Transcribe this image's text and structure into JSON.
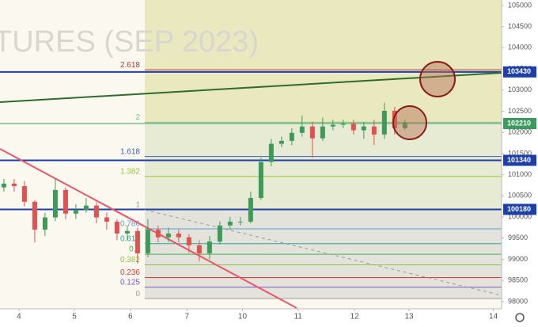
{
  "chart_data": {
    "type": "candlestick",
    "watermark": "TURES (SEP 2023)",
    "xlim": [
      -0.38,
      48.4
    ],
    "ylim": [
      97830,
      105130
    ],
    "xticks": [
      {
        "value": 1.46,
        "label": "4"
      },
      {
        "value": 6.85,
        "label": "5"
      },
      {
        "value": 12.3,
        "label": "6"
      },
      {
        "value": 17.8,
        "label": "7"
      },
      {
        "value": 23.2,
        "label": "10"
      },
      {
        "value": 28.6,
        "label": "11"
      },
      {
        "value": 34.1,
        "label": "12"
      },
      {
        "value": 39.4,
        "label": "13"
      },
      {
        "value": 47.6,
        "label": "14"
      }
    ],
    "yticks": [
      98000,
      98500,
      99000,
      99500,
      100000,
      100500,
      101000,
      101500,
      102000,
      102500,
      103000,
      103500,
      104000,
      104500,
      105000
    ],
    "up_color": "#3f9a5a",
    "down_color": "#e0524f",
    "open": [
      100700,
      100790,
      100730,
      100360,
      99700,
      99990,
      100640,
      100080,
      100170,
      100270,
      99990,
      99890,
      99610,
      99670,
      99140,
      99700,
      99520,
      99610,
      99520,
      99330,
      99140,
      99420,
      99800,
      99890,
      99890,
      100450,
      101300,
      101730,
      101800,
      101990,
      102140,
      101860,
      102140,
      102180,
      102200,
      102050,
      102140,
      101950,
      102510,
      102100
    ],
    "high": [
      100900,
      100900,
      100850,
      100400,
      100100,
      100900,
      100700,
      100300,
      100450,
      100350,
      100100,
      99950,
      99800,
      99750,
      99950,
      99800,
      99750,
      99700,
      99600,
      99450,
      99550,
      99900,
      100000,
      100000,
      100600,
      101400,
      101850,
      101900,
      102100,
      102400,
      102250,
      102350,
      102300,
      102300,
      102300,
      102250,
      102300,
      102700,
      102600,
      102300
    ],
    "low": [
      100600,
      100600,
      100250,
      99400,
      99550,
      99900,
      99950,
      99950,
      100100,
      99850,
      99700,
      99450,
      99450,
      98900,
      99050,
      99400,
      99400,
      99400,
      99150,
      98950,
      99000,
      99350,
      99700,
      99800,
      99850,
      100400,
      101200,
      101650,
      101700,
      101900,
      101400,
      101800,
      102050,
      102100,
      101950,
      101850,
      101700,
      101850,
      101950,
      102050
    ],
    "close": [
      100790,
      100730,
      100360,
      99700,
      99990,
      100640,
      100080,
      100170,
      100270,
      99990,
      99890,
      99610,
      99670,
      99140,
      99700,
      99520,
      99610,
      99520,
      99330,
      99140,
      99420,
      99800,
      99890,
      99890,
      100450,
      101300,
      101730,
      101800,
      101990,
      102140,
      101860,
      102140,
      102180,
      102200,
      102050,
      102140,
      101950,
      102510,
      102100,
      102230
    ],
    "levels": [
      {
        "value": 103430,
        "color": "#1e3fa8"
      },
      {
        "value": 102210,
        "color": "#3c9a5f"
      },
      {
        "value": 101340,
        "color": "#1e3fa8"
      },
      {
        "value": 100180,
        "color": "#1e3fa8"
      }
    ],
    "fib": [
      {
        "label": "2.618",
        "value": 103480,
        "color": "#b03a3a"
      },
      {
        "label": "2",
        "value": 102240,
        "color": "#7bc67b"
      },
      {
        "label": "1.618",
        "value": 101430,
        "color": "#3e5fb8"
      },
      {
        "label": "1.382",
        "value": 100960,
        "color": "#9bc53d"
      },
      {
        "label": "1",
        "value": 100170,
        "color": "#9e9e9e"
      },
      {
        "label": "0.786",
        "value": 99720,
        "color": "#5b9bd5"
      },
      {
        "label": "0.618",
        "value": 99370,
        "color": "#26a69a"
      },
      {
        "label": "0.5",
        "value": 99120,
        "color": "#4caf50"
      },
      {
        "label": "0.382",
        "value": 98870,
        "color": "#8bc34a"
      },
      {
        "label": "0.236",
        "value": 98570,
        "color": "#e53935"
      },
      {
        "label": "0.125",
        "value": 98340,
        "color": "#7e57c2"
      },
      {
        "label": "0",
        "value": 98070,
        "color": "#9e9e9e"
      }
    ]
  }
}
